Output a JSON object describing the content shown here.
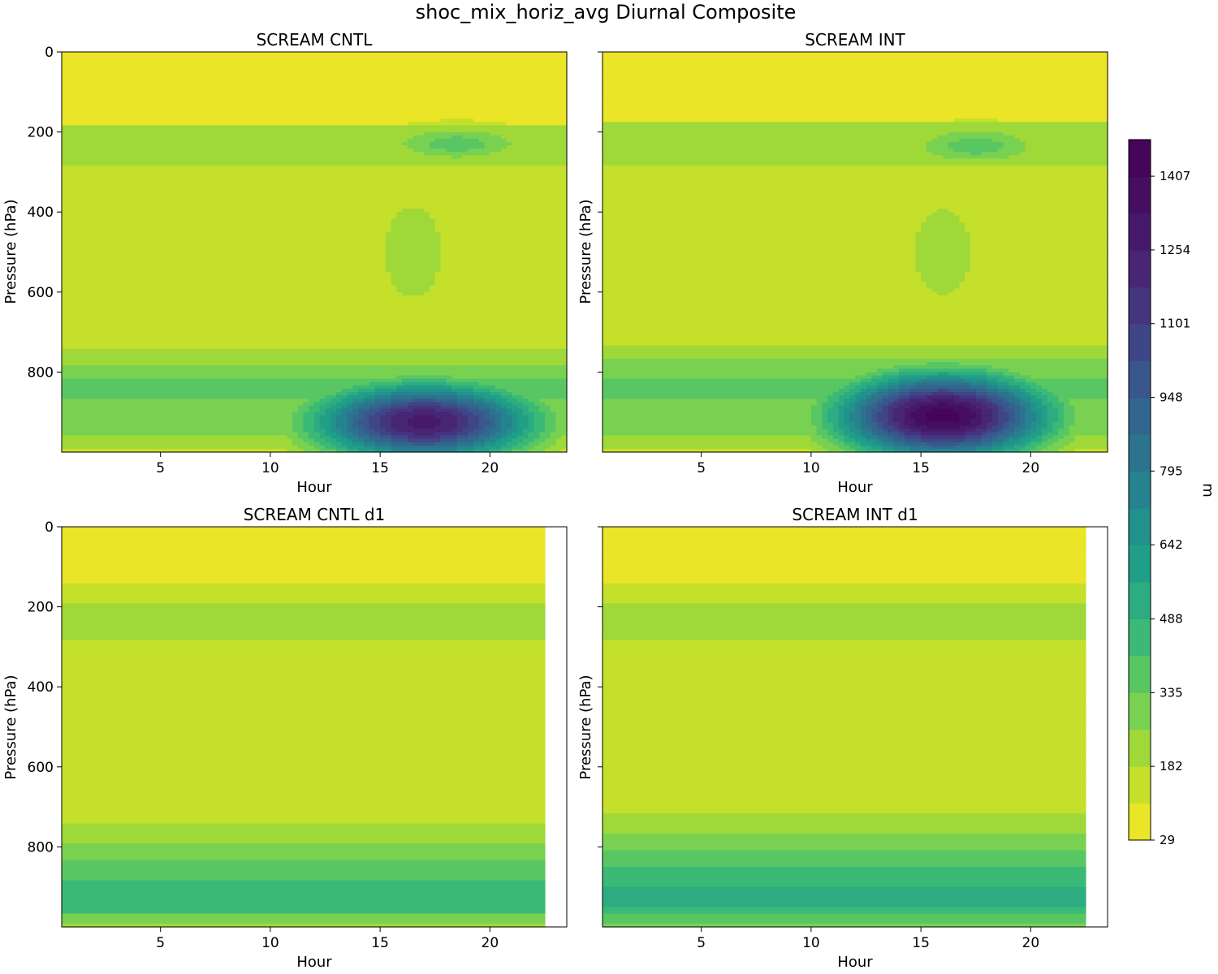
{
  "chart_data": {
    "type": "heatmap",
    "plot_kind": "filled-contour",
    "title": "shoc_mix_horiz_avg Diurnal Composite",
    "colormap": "viridis_r",
    "colorbar": {
      "label": "m",
      "vmin": 29,
      "vmax": 1483,
      "levels": 19,
      "ticks": [
        29,
        182,
        335,
        488,
        642,
        795,
        948,
        1101,
        1254,
        1407
      ],
      "tick_labels": [
        "29",
        "182",
        "335",
        "488",
        "642",
        "795",
        "948",
        "1101",
        "1254",
        "1407"
      ]
    },
    "panels": [
      {
        "title": "SCREAM CNTL",
        "xlabel": "Hour",
        "ylabel": "Pressure (hPa)",
        "xlim": [
          0.5,
          23.5
        ],
        "ylim": [
          1000,
          0
        ],
        "xticks": [
          5,
          10,
          15,
          20
        ],
        "yticks": [
          0,
          200,
          400,
          600,
          800
        ],
        "show_yticklabels": true,
        "data_xmax": 23.5,
        "field": {
          "background_levels": [
            [
              0,
              1
            ],
            [
              140,
              1
            ],
            [
              180,
              3
            ],
            [
              280,
              2
            ],
            [
              740,
              3
            ],
            [
              780,
              4
            ],
            [
              820,
              5
            ],
            [
              870,
              4
            ],
            [
              960,
              3
            ],
            [
              990,
              2
            ]
          ],
          "features": [
            {
              "hour": 17.0,
              "pressure": 925,
              "max_level": 17,
              "hour_width": 5.2,
              "pressure_width": 100,
              "note": "afternoon boundary-layer maximum"
            },
            {
              "hour": 18.5,
              "pressure": 230,
              "max_level": 5,
              "hour_width": 4.0,
              "pressure_width": 55,
              "note": "upper-level secondary maximum"
            },
            {
              "hour": 16.5,
              "pressure": 500,
              "max_level": 3,
              "hour_width": 3.0,
              "pressure_width": 260,
              "note": "afternoon column mixing"
            }
          ]
        }
      },
      {
        "title": "SCREAM INT",
        "xlabel": "Hour",
        "ylabel": "Pressure (hPa)",
        "xlim": [
          0.5,
          23.5
        ],
        "ylim": [
          1000,
          0
        ],
        "xticks": [
          5,
          10,
          15,
          20
        ],
        "yticks": [
          0,
          200,
          400,
          600,
          800
        ],
        "show_yticklabels": false,
        "data_xmax": 23.5,
        "field": {
          "background_levels": [
            [
              0,
              1
            ],
            [
              130,
              1
            ],
            [
              175,
              3
            ],
            [
              280,
              2
            ],
            [
              730,
              3
            ],
            [
              770,
              4
            ],
            [
              820,
              5
            ],
            [
              870,
              4
            ],
            [
              960,
              3
            ],
            [
              990,
              2
            ]
          ],
          "features": [
            {
              "hour": 16.0,
              "pressure": 910,
              "max_level": 19,
              "hour_width": 5.0,
              "pressure_width": 110,
              "note": "afternoon boundary-layer maximum"
            },
            {
              "hour": 17.5,
              "pressure": 235,
              "max_level": 5,
              "hour_width": 3.8,
              "pressure_width": 60,
              "note": "upper-level secondary maximum"
            },
            {
              "hour": 16.0,
              "pressure": 500,
              "max_level": 3,
              "hour_width": 3.0,
              "pressure_width": 250,
              "note": "afternoon column mixing"
            }
          ]
        }
      },
      {
        "title": "SCREAM CNTL d1",
        "xlabel": "Hour",
        "ylabel": "Pressure (hPa)",
        "xlim": [
          0.5,
          23.5
        ],
        "ylim": [
          1000,
          0
        ],
        "xticks": [
          5,
          10,
          15,
          20
        ],
        "yticks": [
          0,
          200,
          400,
          600,
          800
        ],
        "show_yticklabels": true,
        "data_xmax": 22.5,
        "field": {
          "background_levels": [
            [
              0,
              1
            ],
            [
              140,
              2
            ],
            [
              190,
              3
            ],
            [
              280,
              2
            ],
            [
              740,
              3
            ],
            [
              790,
              4
            ],
            [
              830,
              5
            ],
            [
              880,
              6
            ],
            [
              970,
              4
            ],
            [
              990,
              3
            ]
          ],
          "features": []
        }
      },
      {
        "title": "SCREAM INT d1",
        "xlabel": "Hour",
        "ylabel": "Pressure (hPa)",
        "xlim": [
          0.5,
          23.5
        ],
        "ylim": [
          1000,
          0
        ],
        "xticks": [
          5,
          10,
          15,
          20
        ],
        "yticks": [
          0,
          200,
          400,
          600,
          800
        ],
        "show_yticklabels": false,
        "data_xmax": 22.5,
        "field": {
          "background_levels": [
            [
              0,
              1
            ],
            [
              140,
              2
            ],
            [
              190,
              3
            ],
            [
              280,
              2
            ],
            [
              720,
              3
            ],
            [
              770,
              4
            ],
            [
              810,
              5
            ],
            [
              850,
              6
            ],
            [
              900,
              7
            ],
            [
              950,
              6
            ],
            [
              970,
              5
            ],
            [
              990,
              4
            ]
          ],
          "features": []
        }
      }
    ]
  }
}
